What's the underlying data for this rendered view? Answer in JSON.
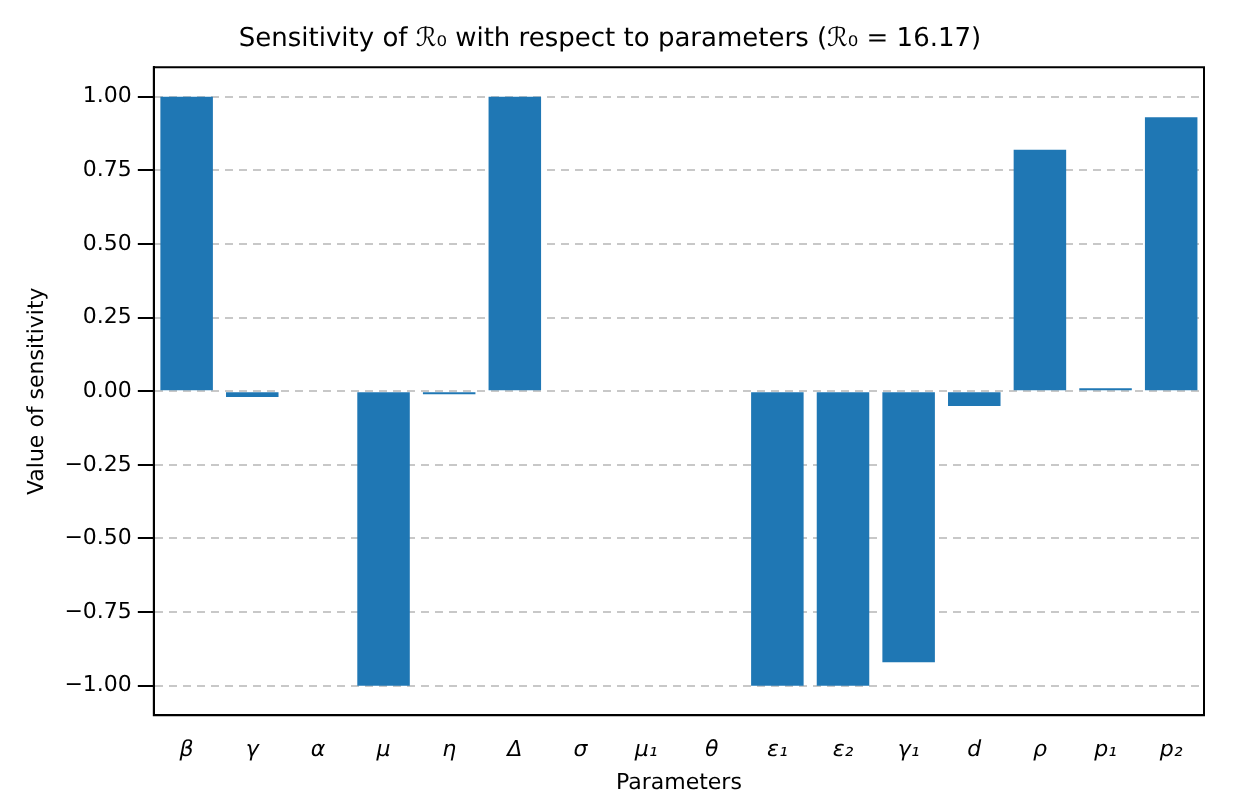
{
  "chart_data": {
    "type": "bar",
    "title": "Sensitivity of ℛ₀ with respect to parameters (ℛ₀ = 16.17)",
    "xlabel": "Parameters",
    "ylabel": "Value of sensitivity",
    "categories": [
      "β",
      "γ",
      "α",
      "μ",
      "η",
      "Δ",
      "σ",
      "μ₁",
      "θ",
      "ε₁",
      "ε₂",
      "γ₁",
      "d",
      "ρ",
      "p₁",
      "p₂"
    ],
    "values": [
      1,
      -0.02,
      0,
      -1,
      -0.01,
      1,
      0,
      0,
      0,
      -1,
      -1,
      -0.92,
      -0.05,
      0.82,
      0.01,
      0.93
    ],
    "color": "#1f77b4",
    "ylim": [
      -1.1,
      1.1
    ],
    "yticks": [
      {
        "value": -1,
        "label": "−1.00"
      },
      {
        "value": -0.75,
        "label": "−0.75"
      },
      {
        "value": -0.5,
        "label": "−0.50"
      },
      {
        "value": -0.25,
        "label": "−0.25"
      },
      {
        "value": 0,
        "label": "0.00"
      },
      {
        "value": 0.25,
        "label": "0.25"
      },
      {
        "value": 0.5,
        "label": "0.50"
      },
      {
        "value": 0.75,
        "label": "0.75"
      },
      {
        "value": 1,
        "label": "1.00"
      }
    ],
    "grid": "y",
    "line_style": "dashed",
    "legend": false
  }
}
